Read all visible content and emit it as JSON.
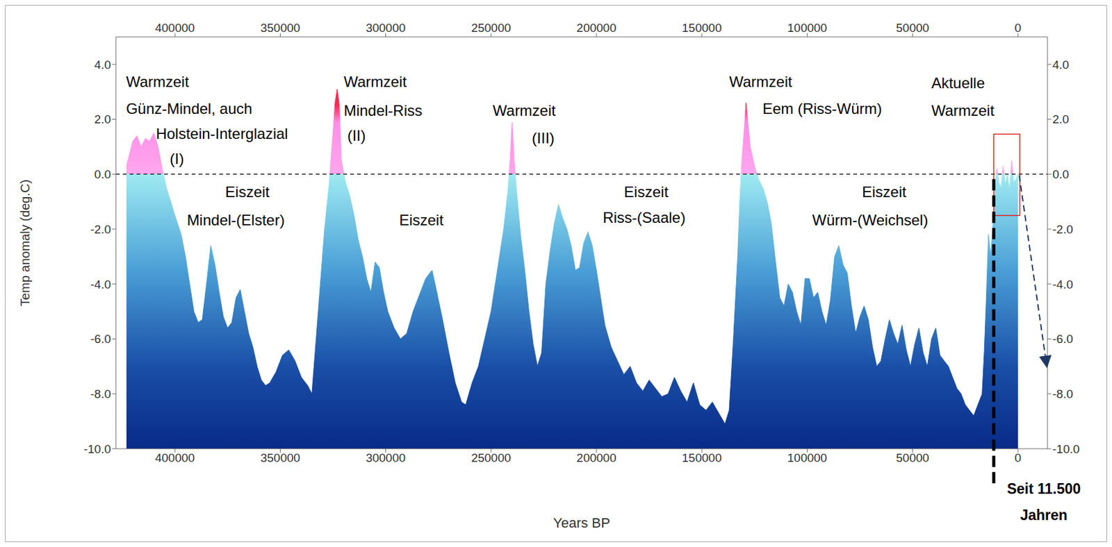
{
  "chart_data": {
    "type": "area",
    "x_label": "Years BP",
    "y_label": "Temp anomaly (deg.C)",
    "x": [
      423000,
      420000,
      418000,
      416000,
      414000,
      412000,
      410000,
      408000,
      406000,
      404000,
      402000,
      400000,
      397000,
      395000,
      393000,
      391000,
      389000,
      387000,
      385000,
      383000,
      381000,
      379000,
      377000,
      375000,
      373000,
      371000,
      369000,
      367000,
      365000,
      363000,
      361000,
      359000,
      357000,
      355000,
      352000,
      349000,
      346000,
      343000,
      340000,
      337000,
      335000,
      333000,
      331000,
      329000,
      327000,
      325000,
      324000,
      323000,
      322000,
      321000,
      319000,
      317000,
      315000,
      313000,
      311000,
      309000,
      307000,
      305000,
      303000,
      301000,
      299000,
      296000,
      293000,
      290000,
      287000,
      284000,
      281000,
      278000,
      276000,
      273000,
      270000,
      267000,
      264000,
      262000,
      259000,
      256000,
      253000,
      250000,
      247000,
      244000,
      242000,
      241000,
      240000,
      239000,
      238000,
      236000,
      234000,
      232000,
      230000,
      228000,
      226000,
      224000,
      222000,
      220000,
      218000,
      216000,
      214000,
      212000,
      210000,
      208000,
      206000,
      204000,
      202000,
      200000,
      198000,
      196000,
      193000,
      190000,
      187000,
      184000,
      181000,
      178000,
      175000,
      172000,
      169000,
      166000,
      163000,
      160000,
      157000,
      154000,
      151000,
      148000,
      145000,
      142000,
      139000,
      137000,
      135000,
      133000,
      132000,
      131000,
      130000,
      129000,
      128000,
      127000,
      125000,
      123000,
      121000,
      119000,
      117000,
      115000,
      113000,
      111000,
      109000,
      107000,
      105000,
      103000,
      101000,
      99000,
      97000,
      95000,
      93000,
      91000,
      89000,
      87000,
      85000,
      83000,
      81000,
      79000,
      77000,
      75000,
      73000,
      71000,
      69000,
      67000,
      65000,
      63000,
      61000,
      59000,
      57000,
      55000,
      53000,
      51000,
      49000,
      47000,
      45000,
      43000,
      41000,
      39000,
      37000,
      35000,
      33000,
      31000,
      29000,
      27000,
      25000,
      23000,
      21000,
      19000,
      17000,
      16000,
      15000,
      14000,
      13000,
      12000,
      11000,
      10000,
      9000,
      8000,
      7000,
      6000,
      5000,
      4000,
      3000,
      2000,
      1000,
      0
    ],
    "values": [
      0.3,
      1.2,
      1.4,
      1.0,
      1.3,
      1.2,
      1.5,
      1.0,
      0.2,
      -0.5,
      -1.0,
      -1.5,
      -2.2,
      -3.0,
      -4.0,
      -5.0,
      -5.4,
      -5.3,
      -4.0,
      -2.6,
      -3.3,
      -4.3,
      -5.2,
      -5.6,
      -5.4,
      -4.5,
      -4.2,
      -5.0,
      -5.8,
      -6.3,
      -7.0,
      -7.5,
      -7.7,
      -7.6,
      -7.2,
      -6.6,
      -6.4,
      -6.8,
      -7.4,
      -7.7,
      -8.0,
      -6.0,
      -4.0,
      -2.0,
      -0.5,
      1.5,
      2.6,
      3.1,
      2.5,
      0.5,
      -0.3,
      -0.8,
      -1.5,
      -2.4,
      -3.0,
      -3.8,
      -4.3,
      -3.2,
      -3.4,
      -4.3,
      -5.0,
      -5.6,
      -6.0,
      -5.8,
      -5.0,
      -4.4,
      -3.8,
      -3.5,
      -4.2,
      -5.3,
      -6.5,
      -7.6,
      -8.3,
      -8.4,
      -7.6,
      -7.0,
      -6.0,
      -5.0,
      -3.5,
      -2.0,
      -0.6,
      0.5,
      1.9,
      0.5,
      -0.5,
      -2.2,
      -3.5,
      -5.0,
      -6.2,
      -7.0,
      -6.5,
      -4.0,
      -2.8,
      -1.8,
      -1.1,
      -1.6,
      -2.0,
      -2.6,
      -3.5,
      -3.4,
      -2.5,
      -2.1,
      -2.6,
      -3.5,
      -4.5,
      -5.5,
      -6.3,
      -6.8,
      -7.3,
      -7.0,
      -7.6,
      -7.9,
      -7.5,
      -7.8,
      -8.1,
      -8.0,
      -7.4,
      -7.9,
      -8.3,
      -7.6,
      -8.4,
      -8.6,
      -8.3,
      -8.7,
      -9.1,
      -8.6,
      -6.0,
      -3.0,
      -1.0,
      0.5,
      1.5,
      2.6,
      1.8,
      1.0,
      0.3,
      -0.2,
      -0.5,
      -1.0,
      -1.8,
      -3.2,
      -4.5,
      -4.8,
      -4.0,
      -4.3,
      -5.0,
      -5.5,
      -3.8,
      -3.8,
      -4.5,
      -4.3,
      -5.0,
      -5.5,
      -4.6,
      -3.0,
      -2.6,
      -3.3,
      -3.6,
      -4.8,
      -5.8,
      -5.2,
      -4.8,
      -5.3,
      -6.3,
      -7.0,
      -6.8,
      -6.0,
      -5.3,
      -5.8,
      -6.2,
      -5.5,
      -6.4,
      -7.0,
      -6.2,
      -5.6,
      -6.5,
      -7.0,
      -6.0,
      -5.6,
      -6.6,
      -6.8,
      -7.0,
      -7.4,
      -7.8,
      -8.0,
      -8.4,
      -8.6,
      -8.8,
      -8.4,
      -8.0,
      -6.5,
      -4.5,
      -2.2,
      -3.0,
      -2.0,
      -0.5,
      0.2,
      -0.3,
      -0.5,
      0.3,
      -0.4,
      0.0,
      -0.6,
      0.5,
      -0.3,
      -0.2,
      0.0
    ],
    "xlim": [
      -14000,
      428000
    ],
    "xticks": [
      0,
      50000,
      100000,
      150000,
      200000,
      250000,
      300000,
      350000,
      400000
    ],
    "ylim": [
      -10,
      5
    ],
    "yticks": [
      {
        "value": -10,
        "label": "-10.0"
      },
      {
        "value": -8,
        "label": "-8.0"
      },
      {
        "value": -6,
        "label": "-6.0"
      },
      {
        "value": -4,
        "label": "-4.0"
      },
      {
        "value": -2,
        "label": "-2.0"
      },
      {
        "value": 0,
        "label": "0.0"
      },
      {
        "value": 2,
        "label": "2.0"
      },
      {
        "value": 4,
        "label": "4.0"
      }
    ],
    "reference_line": 0,
    "grid": false,
    "annotations": [
      {
        "text": "Warmzeit",
        "x": 423200,
        "y": 3.37
      },
      {
        "text": "Günz-Mindel, auch",
        "x": 423200,
        "y": 2.38
      },
      {
        "text": "Holstein-Interglazial",
        "x": 409000,
        "y": 1.48
      },
      {
        "text": "(I)",
        "x": 402400,
        "y": 0.57
      },
      {
        "text": "Eiszeit",
        "x": 376100,
        "y": -0.65
      },
      {
        "text": "Mindel-(Elster)",
        "x": 394300,
        "y": -1.66
      },
      {
        "text": "Warmzeit",
        "x": 319900,
        "y": 3.37
      },
      {
        "text": "Mindel-Riss",
        "x": 319900,
        "y": 2.33
      },
      {
        "text": "(II)",
        "x": 318200,
        "y": 1.42
      },
      {
        "text": "Eiszeit",
        "x": 293600,
        "y": -1.66
      },
      {
        "text": "Warmzeit",
        "x": 249200,
        "y": 2.33
      },
      {
        "text": "(III)",
        "x": 230600,
        "y": 1.32
      },
      {
        "text": "Eiszeit",
        "x": 186900,
        "y": -0.65
      },
      {
        "text": "Riss-(Saale)",
        "x": 197000,
        "y": -1.58
      },
      {
        "text": "Warmzeit",
        "x": 137000,
        "y": 3.37
      },
      {
        "text": "Eem (Riss-Würm)",
        "x": 121200,
        "y": 2.38
      },
      {
        "text": "Eiszeit",
        "x": 74000,
        "y": -0.65
      },
      {
        "text": "Würm-(Weichsel)",
        "x": 97600,
        "y": -1.66
      },
      {
        "text": "Aktuelle",
        "x": 41100,
        "y": 3.32
      },
      {
        "text": "Warmzeit",
        "x": 41100,
        "y": 2.33
      }
    ],
    "footnote": {
      "lines": [
        "Seit 11.500",
        "Jahren"
      ],
      "x": 11500
    }
  }
}
